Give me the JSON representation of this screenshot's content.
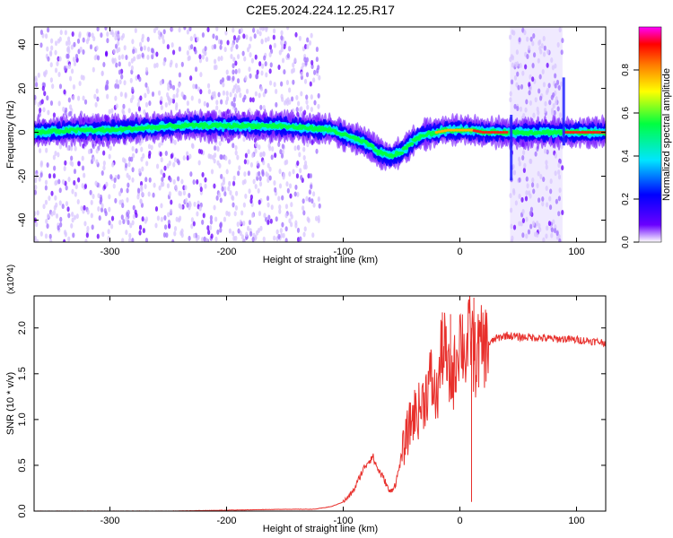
{
  "figure_title": "C2E5.2024.224.12.25.R17",
  "colors": {
    "snr_line": "#e8302c",
    "frame": "#000000",
    "background": "#ffffff"
  },
  "chart_data": [
    {
      "type": "heatmap",
      "name": "spectrogram",
      "xlabel": "Height of straight line (km)",
      "ylabel": "Frequency (Hz)",
      "xlim": [
        -365,
        125
      ],
      "ylim": [
        -50,
        48
      ],
      "xticks": [
        -300,
        -200,
        -100,
        0,
        100
      ],
      "yticks": [
        -40,
        -20,
        0,
        20,
        40
      ],
      "colorbar": {
        "label": "Normalized spectral amplitude",
        "range": [
          0.0,
          1.0
        ],
        "ticks": [
          0.0,
          0.2,
          0.4,
          0.6,
          0.8
        ],
        "tick_labels": [
          "0.0",
          "0.2",
          "0.4",
          "0.6",
          "0.8"
        ],
        "colormap": [
          "#ffffff",
          "#6a00ff",
          "#0000ff",
          "#00e5ff",
          "#00ff40",
          "#ffff00",
          "#ff7f00",
          "#ff0000",
          "#ff00ff"
        ]
      },
      "ridge": {
        "x": [
          -360,
          -330,
          -300,
          -270,
          -240,
          -200,
          -160,
          -130,
          -110,
          -95,
          -80,
          -70,
          -60,
          -50,
          -40,
          -30,
          -20,
          -10,
          0,
          10,
          20,
          30,
          40,
          55,
          70,
          85,
          95,
          110,
          125
        ],
        "frequency": [
          0,
          1,
          1,
          2,
          3,
          3,
          3,
          2,
          1,
          -2,
          -5,
          -9,
          -11,
          -9,
          -4,
          -1,
          0,
          1,
          1,
          1,
          0,
          0,
          0,
          0,
          0,
          0,
          0,
          0,
          0
        ]
      },
      "noise_regions": [
        {
          "x_from": -365,
          "x_to": -120
        },
        {
          "x_from": 43,
          "x_to": 88
        }
      ]
    },
    {
      "type": "line",
      "name": "snr",
      "xlabel": "Height of straight line (km)",
      "ylabel": "SNR (10 * v/v)",
      "y_multiplier": "(x10^4)",
      "xlim": [
        -365,
        125
      ],
      "ylim": [
        0.0,
        2.35
      ],
      "xticks": [
        -300,
        -200,
        -100,
        0,
        100
      ],
      "yticks": [
        0.0,
        0.5,
        1.0,
        1.5,
        2.0
      ],
      "ytick_labels": [
        "0.0",
        "0.5",
        "1.0",
        "1.5",
        "2.0"
      ],
      "series": [
        {
          "x": [
            -365,
            -340,
            -300,
            -250,
            -200,
            -150,
            -125,
            -110,
            -100,
            -95,
            -90,
            -85,
            -80,
            -75,
            -70,
            -65,
            -60,
            -55,
            -50,
            -45,
            -40,
            -35,
            -30,
            -25,
            -20,
            -15,
            -12,
            -10,
            -5,
            0,
            5,
            10,
            12,
            15,
            20,
            25,
            30,
            35,
            40,
            50,
            60,
            70,
            80,
            90,
            100,
            110,
            125
          ],
          "y": [
            0.0,
            0.0,
            0.0,
            0.0,
            0.01,
            0.02,
            0.02,
            0.05,
            0.1,
            0.16,
            0.25,
            0.4,
            0.52,
            0.6,
            0.45,
            0.35,
            0.2,
            0.3,
            0.6,
            0.85,
            1.05,
            1.1,
            1.25,
            1.45,
            1.2,
            1.8,
            1.7,
            1.45,
            1.5,
            1.95,
            1.7,
            2.0,
            1.6,
            1.75,
            1.8,
            1.82,
            1.88,
            1.9,
            1.92,
            1.9,
            1.9,
            1.89,
            1.88,
            1.88,
            1.87,
            1.86,
            1.84
          ]
        }
      ],
      "spikes": [
        {
          "x": -15,
          "y": 2.17
        },
        {
          "x": -8,
          "y": 2.15
        },
        {
          "x": 12,
          "y": 2.33
        },
        {
          "x": 10,
          "y": 0.1
        }
      ]
    }
  ]
}
